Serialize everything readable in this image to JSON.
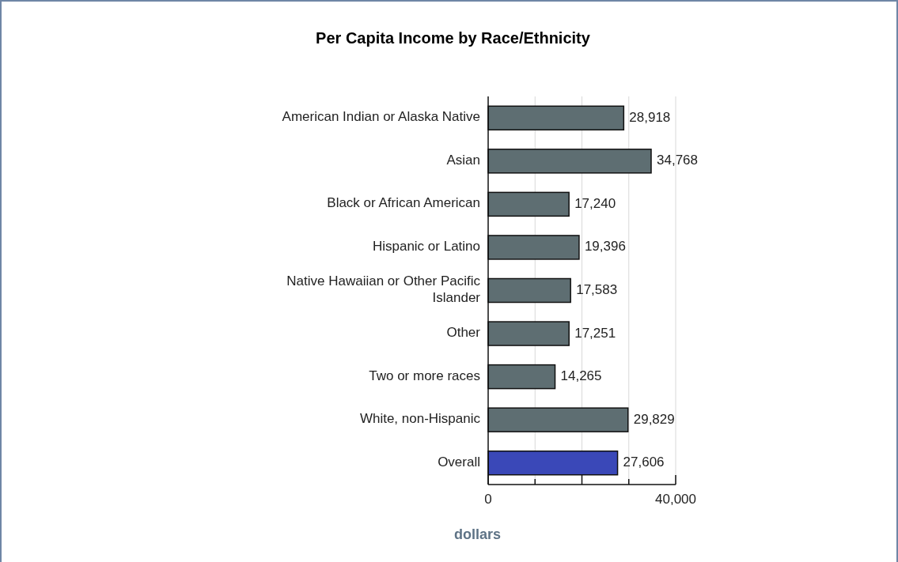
{
  "chart_data": {
    "type": "bar",
    "orientation": "horizontal",
    "title": "Per Capita Income by Race/Ethnicity",
    "xlabel": "dollars",
    "categories": [
      "American Indian or Alaska Native",
      "Asian",
      "Black or African American",
      "Hispanic or Latino",
      "Native Hawaiian or Other Pacific Islander",
      "Other",
      "Two or more races",
      "White, non-Hispanic",
      "Overall"
    ],
    "values": [
      28918,
      34768,
      17240,
      19396,
      17583,
      17251,
      14265,
      29829,
      27606
    ],
    "value_labels": [
      "28,918",
      "34,768",
      "17,240",
      "19,396",
      "17,583",
      "17,251",
      "14,265",
      "29,829",
      "27,606"
    ],
    "colors": [
      "#5e6e72",
      "#5e6e72",
      "#5e6e72",
      "#5e6e72",
      "#5e6e72",
      "#5e6e72",
      "#5e6e72",
      "#5e6e72",
      "#3a48b8"
    ],
    "xlim": [
      0,
      40000
    ],
    "xticks": [
      0,
      {
        "value": 10000,
        "label": null
      },
      {
        "value": 20000,
        "label": null
      },
      {
        "value": 30000,
        "label": null
      },
      {
        "value": 40000,
        "label": "40,000"
      }
    ],
    "grid": "x"
  }
}
